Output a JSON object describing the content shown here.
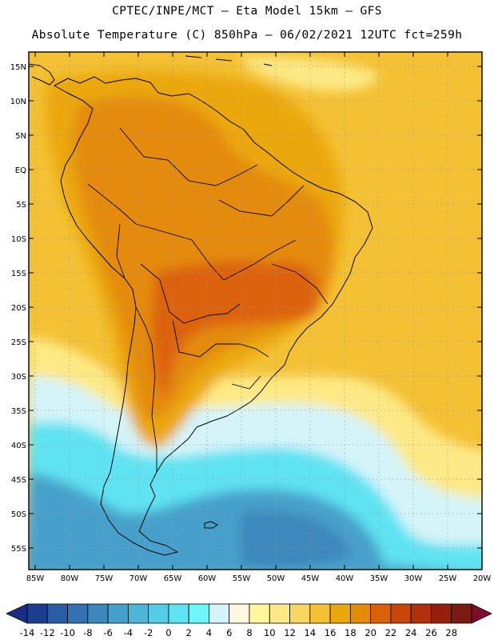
{
  "header": {
    "line1": "CPTEC/INPE/MCT –  Eta Model 15km – GFS",
    "line2": "Absolute Temperature (C) 850hPa – 06/02/2021 12UTC fct=259h"
  },
  "lat_labels": [
    "15N",
    "10N",
    "5N",
    "EQ",
    "5S",
    "10S",
    "15S",
    "20S",
    "25S",
    "30S",
    "35S",
    "40S",
    "45S",
    "50S",
    "55S"
  ],
  "lon_labels": [
    "85W",
    "80W",
    "75W",
    "70W",
    "65W",
    "60W",
    "55W",
    "50W",
    "45W",
    "40W",
    "35W",
    "30W",
    "25W",
    "20W"
  ],
  "colorbar": {
    "ticks": [
      "-14",
      "-12",
      "-10",
      "-8",
      "-6",
      "-4",
      "-2",
      "0",
      "2",
      "4",
      "6",
      "8",
      "10",
      "12",
      "14",
      "16",
      "18",
      "20",
      "22",
      "24",
      "26",
      "28"
    ],
    "colors": [
      "#1b3f8e",
      "#2a5da3",
      "#3372b0",
      "#3c88bd",
      "#47a0cb",
      "#4eb6d8",
      "#56cde6",
      "#5fe3f2",
      "#6ef7fb",
      "#d4f4f9",
      "#fff8e0",
      "#fff79a",
      "#fde985",
      "#f9d660",
      "#f4c134",
      "#eba80d",
      "#e48b08",
      "#dc6209",
      "#c9460b",
      "#b1310b",
      "#95200c",
      "#7a1a10"
    ],
    "under_color": "#1a2d86",
    "over_color": "#7d0d2b"
  },
  "region_colors": {
    "deep_cold": "#3c88bd",
    "cold": "#47a0cb",
    "cool": "#5fe3f2",
    "cyan_pale": "#d4f4f9",
    "neutral": "#fff8e0",
    "mild": "#fde985",
    "warm": "#f4c134",
    "hot": "#eba80d",
    "very_hot": "#e48b08",
    "hottest": "#dc6209"
  }
}
